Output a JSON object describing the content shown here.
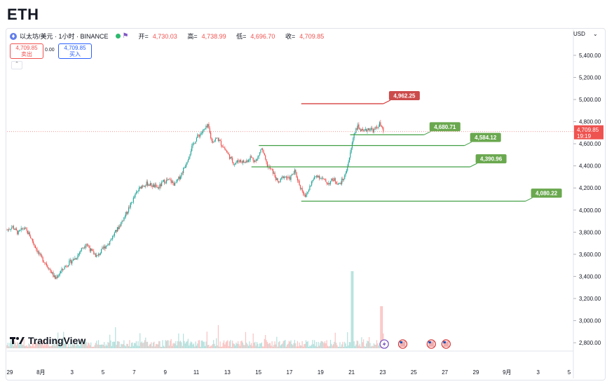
{
  "header": {
    "title": "ETH",
    "symbol": "以太坊/美元 · 1小时 · BINANCE",
    "ohlc": {
      "open_label": "开=",
      "open": "4,730.03",
      "high_label": "高=",
      "high": "4,738.99",
      "low_label": "低=",
      "low": "4,696.70",
      "close_label": "收=",
      "close": "4,709.85"
    },
    "sell": {
      "price": "4,709.85",
      "label": "卖出"
    },
    "spread": "0.00",
    "buy": {
      "price": "4,709.85",
      "label": "买入"
    },
    "currency": "USD"
  },
  "branding": {
    "logo_text": "TradingView",
    "logo_mark": "17"
  },
  "colors": {
    "up": "#26a69a",
    "down": "#ef5350",
    "resistance": "#d32f2f",
    "support": "#43a047",
    "label_green": "#6aa84f",
    "label_red": "#cc4b4b"
  },
  "chart_data": {
    "type": "candlestick",
    "ylim": [
      2750,
      5520
    ],
    "y_ticks": [
      2800,
      3000,
      3200,
      3400,
      3600,
      3800,
      4000,
      4200,
      4400,
      4600,
      4800,
      5000,
      5200,
      5400
    ],
    "y_tick_labels": [
      "2,800.00",
      "3,000.00",
      "3,200.00",
      "3,400.00",
      "3,600.00",
      "3,800.00",
      "4,000.00",
      "4,200.00",
      "4,400.00",
      "4,600.00",
      "4,800.00",
      "5,000.00",
      "5,200.00",
      "5,400.00"
    ],
    "x_tick_labels": [
      "29",
      "8月",
      "3",
      "5",
      "7",
      "9",
      "11",
      "13",
      "15",
      "17",
      "19",
      "21",
      "23",
      "25",
      "27",
      "29",
      "9月",
      "3",
      "5"
    ],
    "price_path": [
      [
        0,
        3820
      ],
      [
        0.6,
        3850
      ],
      [
        1.2,
        3790
      ],
      [
        1.8,
        3840
      ],
      [
        2.4,
        3780
      ],
      [
        3,
        3680
      ],
      [
        3.6,
        3580
      ],
      [
        4.2,
        3520
      ],
      [
        4.8,
        3440
      ],
      [
        5.2,
        3380
      ],
      [
        5.8,
        3440
      ],
      [
        6.4,
        3500
      ],
      [
        7,
        3540
      ],
      [
        7.6,
        3580
      ],
      [
        8,
        3640
      ],
      [
        8.6,
        3700
      ],
      [
        9.2,
        3620
      ],
      [
        9.8,
        3580
      ],
      [
        10.4,
        3650
      ],
      [
        11,
        3700
      ],
      [
        11.6,
        3780
      ],
      [
        12.2,
        3860
      ],
      [
        12.8,
        3950
      ],
      [
        13.4,
        4050
      ],
      [
        14,
        4150
      ],
      [
        14.6,
        4220
      ],
      [
        15.2,
        4240
      ],
      [
        15.8,
        4220
      ],
      [
        16.4,
        4200
      ],
      [
        17,
        4260
      ],
      [
        17.6,
        4270
      ],
      [
        18.2,
        4230
      ],
      [
        18.8,
        4310
      ],
      [
        19.4,
        4420
      ],
      [
        20,
        4560
      ],
      [
        20.6,
        4660
      ],
      [
        21.2,
        4710
      ],
      [
        21.8,
        4760
      ],
      [
        22.2,
        4620
      ],
      [
        22.8,
        4650
      ],
      [
        23.4,
        4580
      ],
      [
        24,
        4500
      ],
      [
        24.6,
        4420
      ],
      [
        25.2,
        4450
      ],
      [
        25.8,
        4430
      ],
      [
        26.4,
        4480
      ],
      [
        27,
        4440
      ],
      [
        27.6,
        4560
      ],
      [
        28.2,
        4400
      ],
      [
        28.8,
        4350
      ],
      [
        29.4,
        4240
      ],
      [
        30,
        4310
      ],
      [
        30.6,
        4280
      ],
      [
        31.2,
        4350
      ],
      [
        31.8,
        4210
      ],
      [
        32.4,
        4120
      ],
      [
        33,
        4250
      ],
      [
        33.6,
        4320
      ],
      [
        34.2,
        4280
      ],
      [
        34.8,
        4240
      ],
      [
        35.4,
        4280
      ],
      [
        36,
        4230
      ],
      [
        36.6,
        4300
      ],
      [
        37.2,
        4500
      ],
      [
        37.6,
        4690
      ],
      [
        38,
        4760
      ],
      [
        38.6,
        4700
      ],
      [
        39.2,
        4740
      ],
      [
        39.8,
        4720
      ],
      [
        40.4,
        4780
      ],
      [
        40.8,
        4710
      ]
    ],
    "x_range": [
      0,
      61.4
    ],
    "last_price": "4,709.85",
    "countdown": "19:19",
    "levels": [
      {
        "name": "resistance",
        "value": 4962.25,
        "label": "4,962.25",
        "x_start": 31.9,
        "x_end": 40.8
      },
      {
        "name": "support-1",
        "value": 4680.71,
        "label": "4,680.71",
        "x_start": 37.2,
        "x_end": 45.2
      },
      {
        "name": "support-2",
        "value": 4584.12,
        "label": "4,584.12",
        "x_start": 27.3,
        "x_end": 49.6
      },
      {
        "name": "support-3",
        "value": 4390.96,
        "label": "4,390.96",
        "x_start": 26.5,
        "x_end": 50.2
      },
      {
        "name": "support-4",
        "value": 4080.22,
        "label": "4,080.22",
        "x_start": 31.9,
        "x_end": 56.2
      }
    ],
    "event_markers": [
      {
        "x": 40.9,
        "type": "dividend"
      },
      {
        "x": 42.9,
        "type": "us-flag"
      },
      {
        "x": 46.0,
        "type": "us-flag"
      },
      {
        "x": 47.6,
        "type": "us-flag"
      }
    ]
  }
}
